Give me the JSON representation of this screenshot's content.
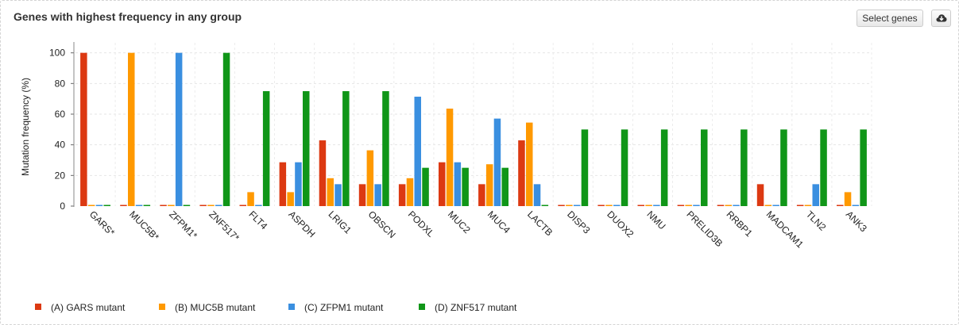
{
  "header": {
    "title": "Genes with highest frequency in any group",
    "select_button_label": "Select genes",
    "download_icon": "cloud-download-icon"
  },
  "chart_data": {
    "type": "bar",
    "title": "",
    "xlabel": "",
    "ylabel": "Mutation frequency (%)",
    "ylim": [
      0,
      105
    ],
    "yticks": [
      0,
      20,
      40,
      60,
      80,
      100
    ],
    "grid": true,
    "legend_position": "bottom-left",
    "categories": [
      "GARS*",
      "MUC5B*",
      "ZFPM1*",
      "ZNF517*",
      "FLT4",
      "ASPDH",
      "LRIG1",
      "OBSCN",
      "PODXL",
      "MUC2",
      "MUC4",
      "LACTB",
      "DISP3",
      "DUOX2",
      "NMU",
      "PRELID3B",
      "RRBP1",
      "MADCAM1",
      "TLN2",
      "ANK3"
    ],
    "series": [
      {
        "name": "(A) GARS mutant",
        "color": "#dc3912",
        "values": [
          100,
          0,
          0,
          0,
          0,
          28.6,
          42.9,
          14.3,
          14.3,
          28.6,
          14.3,
          42.9,
          0,
          0,
          0,
          0,
          0,
          14.3,
          0,
          0
        ]
      },
      {
        "name": "(B) MUC5B mutant",
        "color": "#ff9900",
        "values": [
          0,
          100,
          0,
          0,
          9.1,
          9.1,
          18.2,
          36.4,
          18.2,
          63.6,
          27.3,
          54.5,
          0,
          0,
          0,
          0,
          0,
          0,
          0,
          9.1
        ]
      },
      {
        "name": "(C) ZFPM1 mutant",
        "color": "#3a8fe0",
        "values": [
          0,
          0,
          100,
          0,
          0,
          28.6,
          14.3,
          14.3,
          71.4,
          28.6,
          57.1,
          14.3,
          0,
          0,
          0,
          0,
          0,
          0,
          14.3,
          0
        ]
      },
      {
        "name": "(D) ZNF517 mutant",
        "color": "#109618",
        "values": [
          0,
          0,
          0,
          100,
          75,
          75,
          75,
          75,
          25,
          25,
          25,
          0,
          50,
          50,
          50,
          50,
          50,
          50,
          50,
          50
        ]
      }
    ]
  }
}
